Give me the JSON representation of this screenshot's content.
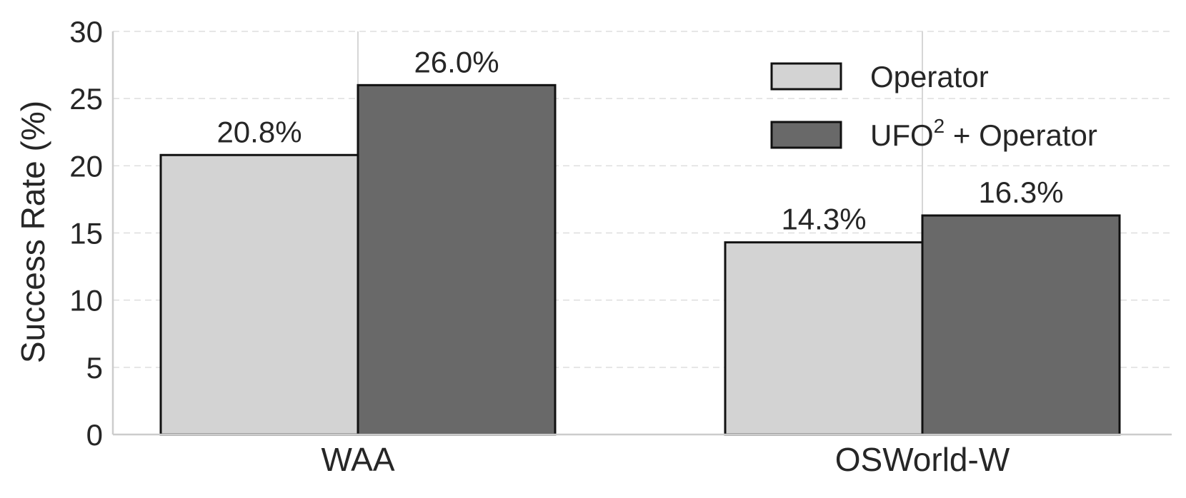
{
  "chart_data": {
    "type": "bar",
    "categories": [
      "WAA",
      "OSWorld-W"
    ],
    "series": [
      {
        "name": "Operator",
        "values": [
          20.8,
          14.3
        ],
        "color": "#d3d3d3"
      },
      {
        "name_base": "UFO",
        "name_sup": "2",
        "name_rest": " + Operator",
        "values": [
          26.0,
          16.3
        ],
        "color": "#696969"
      }
    ],
    "data_labels": [
      [
        "20.8%",
        "14.3%"
      ],
      [
        "26.0%",
        "16.3%"
      ]
    ],
    "ylabel": "Success Rate (%)",
    "ylim": [
      0,
      30
    ],
    "yticks": [
      0,
      5,
      10,
      15,
      20,
      25,
      30
    ],
    "grid": "dashed horizontal, solid vertical at categories",
    "legend_position": "top-right"
  }
}
